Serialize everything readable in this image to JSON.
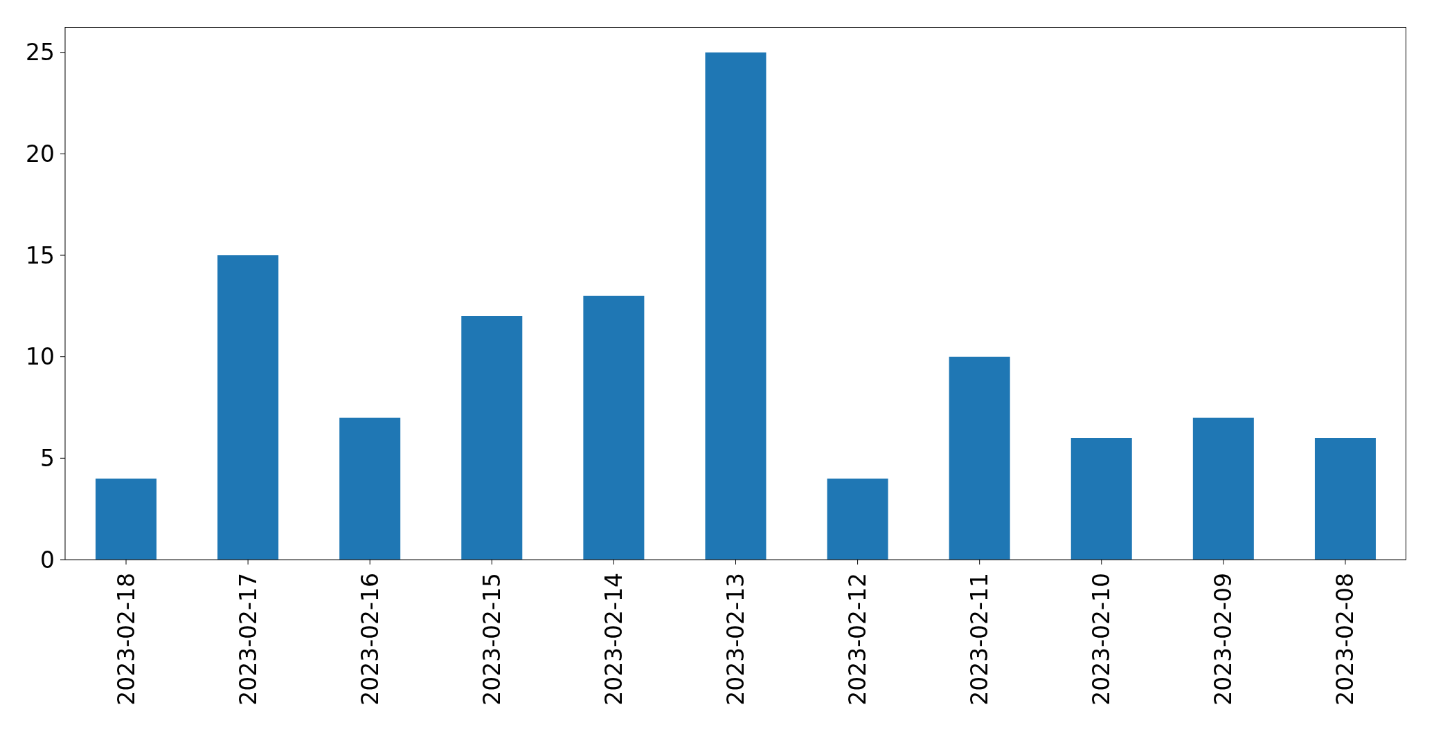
{
  "chart_data": {
    "type": "bar",
    "categories": [
      "2023-02-18",
      "2023-02-17",
      "2023-02-16",
      "2023-02-15",
      "2023-02-14",
      "2023-02-13",
      "2023-02-12",
      "2023-02-11",
      "2023-02-10",
      "2023-02-09",
      "2023-02-08"
    ],
    "values": [
      4,
      15,
      7,
      12,
      13,
      25,
      4,
      10,
      6,
      7,
      6
    ],
    "color": "#1f77b4",
    "ylim": [
      0,
      26.25
    ],
    "yticks": [
      0,
      5,
      10,
      15,
      20,
      25
    ]
  }
}
